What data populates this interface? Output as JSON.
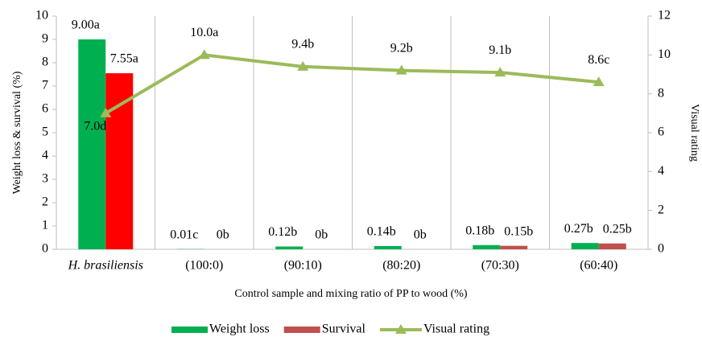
{
  "chart_data": {
    "type": "bar",
    "categories": [
      "H. brasiliensis",
      "(100:0)",
      "(90:10)",
      "(80:20)",
      "(70:30)",
      "(60:40)"
    ],
    "x_label": "Control sample and mixing ratio of PP to wood (%)",
    "y_label": "Weight loss & survival (%)",
    "y2_label": "Visual rating",
    "ylim": [
      0,
      10
    ],
    "yticks": [
      0,
      1,
      2,
      3,
      4,
      5,
      6,
      7,
      8,
      9,
      10
    ],
    "y2lim": [
      0,
      12
    ],
    "y2ticks": [
      0,
      2,
      4,
      6,
      8,
      10,
      12
    ],
    "series": [
      {
        "name": "Weight loss",
        "type": "bar",
        "color": "#00b050",
        "label_color": "#00b050",
        "values": [
          9.0,
          0.01,
          0.12,
          0.14,
          0.18,
          0.27
        ],
        "value_labels": [
          "9.00a",
          "0.01c",
          "0.12b",
          "0.14b",
          "0.18b",
          "0.27b"
        ]
      },
      {
        "name": "Survival",
        "type": "bar",
        "color": "#c0504d",
        "label_color": "#ff0000",
        "colors": [
          "#ff0000",
          "#c0504d",
          "#c0504d",
          "#c0504d",
          "#c0504d",
          "#c0504d"
        ],
        "values": [
          7.55,
          0,
          0,
          0,
          0.15,
          0.25
        ],
        "value_labels": [
          "7.55a",
          "0b",
          "0b",
          "0b",
          "0.15b",
          "0.25b"
        ]
      },
      {
        "name": "Visual rating",
        "type": "line",
        "axis": "y2",
        "color": "#9bbb59",
        "label_color": "#000000",
        "values": [
          7.0,
          10.0,
          9.4,
          9.2,
          9.1,
          8.6
        ],
        "value_labels": [
          "7.0d",
          "10.0a",
          "9.4b",
          "9.2b",
          "9.1b",
          "8.6c"
        ]
      }
    ]
  }
}
